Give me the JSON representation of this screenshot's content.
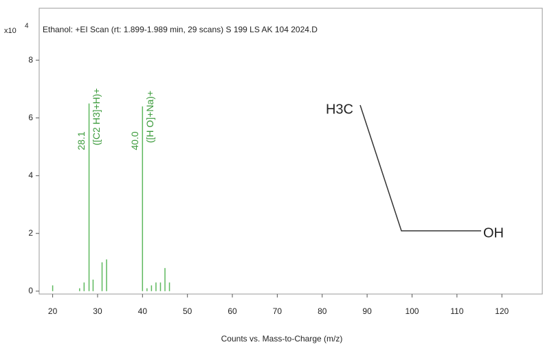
{
  "chart_data": {
    "type": "bar",
    "title": "Ethanol: +EI Scan (rt: 1.899-1.989 min, 29 scans) S 199 LS AK 104 2024.D",
    "y_scale_label": "x10",
    "y_scale_exponent": "4",
    "x_label": "Counts vs. Mass-to-Charge (m/z)",
    "x": [
      20,
      26,
      27,
      28.1,
      29,
      31,
      32,
      40.0,
      41,
      42,
      43,
      44,
      45,
      46
    ],
    "values": [
      0.2,
      0.1,
      0.3,
      6.5,
      0.4,
      1.0,
      1.1,
      6.4,
      0.1,
      0.2,
      0.3,
      0.3,
      0.8,
      0.3
    ],
    "color": "#5cb85c",
    "xlim": [
      17,
      129
    ],
    "ylim": [
      -0.1,
      9.8
    ],
    "xticks": [
      20,
      30,
      40,
      50,
      60,
      70,
      80,
      90,
      100,
      110,
      120
    ],
    "yticks": [
      0,
      2,
      4,
      6,
      8
    ],
    "peak_labels": [
      {
        "value": 28.1,
        "label": "28.1",
        "ion": "([C2 H3]+H)+"
      },
      {
        "value": 40.0,
        "label": "40.0",
        "ion": "([H O]+Na)+"
      }
    ],
    "label_color": "#3a9a3a"
  },
  "structure": {
    "labels": [
      "H3C",
      "OH"
    ]
  }
}
